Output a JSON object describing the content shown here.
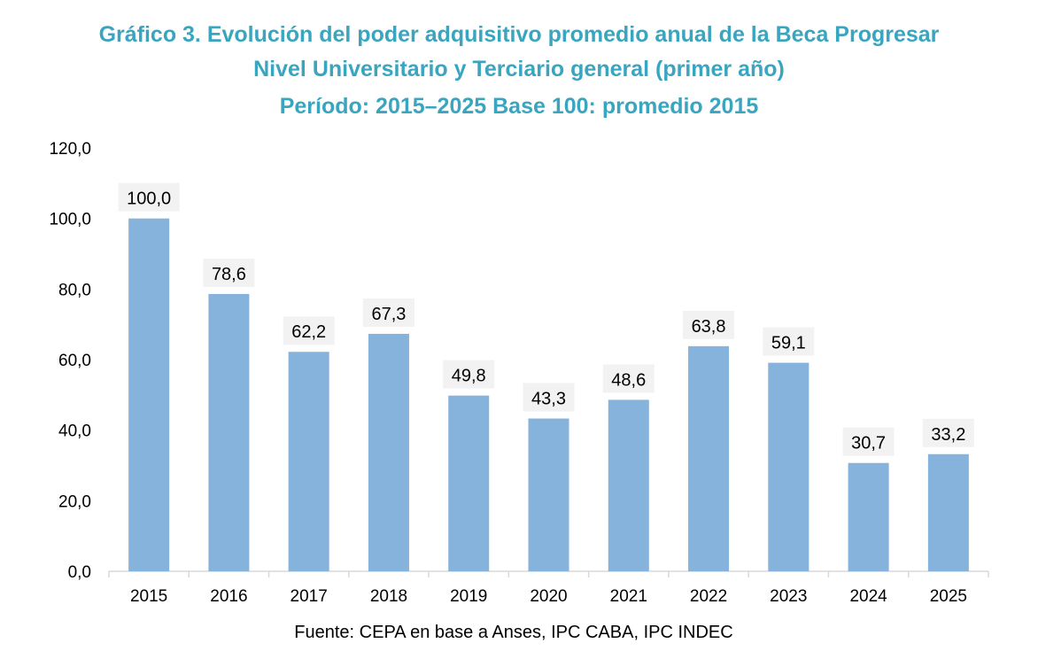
{
  "chart_data": {
    "type": "bar",
    "title": [
      "Gráfico 3. Evolución del poder adquisitivo promedio anual de la Beca Progresar",
      "Nivel Universitario y Terciario general (primer año)",
      "Período: 2015–2025 Base 100: promedio 2015"
    ],
    "categories": [
      "2015",
      "2016",
      "2017",
      "2018",
      "2019",
      "2020",
      "2021",
      "2022",
      "2023",
      "2024",
      "2025"
    ],
    "values": [
      100.0,
      78.6,
      62.2,
      67.3,
      49.8,
      43.3,
      48.6,
      63.8,
      59.1,
      30.7,
      33.2
    ],
    "data_labels": [
      "100,0",
      "78,6",
      "62,2",
      "67,3",
      "49,8",
      "43,3",
      "48,6",
      "63,8",
      "59,1",
      "30,7",
      "33,2"
    ],
    "yticks": [
      "0,0",
      "20,0",
      "40,0",
      "60,0",
      "80,0",
      "100,0",
      "120,0"
    ],
    "ylim": [
      0,
      120
    ],
    "grid": false,
    "source": "Fuente: CEPA en base a Anses, IPC CABA, IPC INDEC",
    "colors": {
      "bar": "#85b3db",
      "title": "#3aa5bf",
      "label_bg": "#f2f2f2"
    }
  }
}
